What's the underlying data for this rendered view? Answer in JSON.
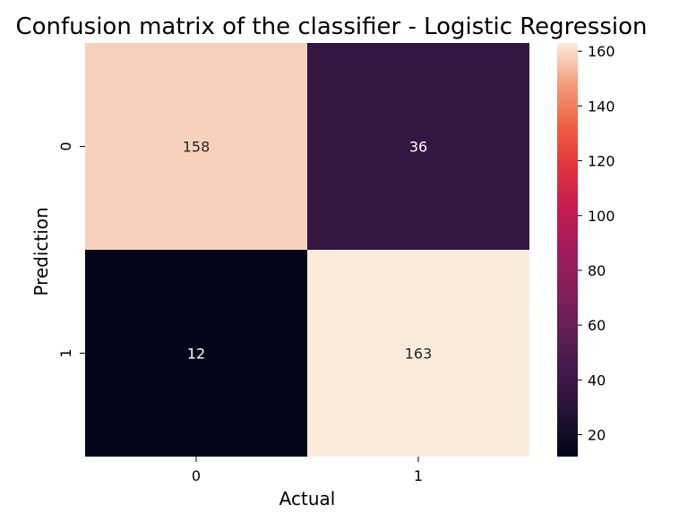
{
  "chart_data": {
    "type": "heatmap",
    "title": "Confusion matrix of the classifier - Logistic Regression",
    "xlabel": "Actual",
    "ylabel": "Prediction",
    "x_categories": [
      "0",
      "1"
    ],
    "y_categories": [
      "0",
      "1"
    ],
    "values": [
      [
        158,
        36
      ],
      [
        12,
        163
      ]
    ],
    "colorbar": {
      "range": [
        12,
        163
      ],
      "ticks": [
        20,
        40,
        60,
        80,
        100,
        120,
        140,
        160
      ],
      "colormap": "rocket"
    }
  }
}
